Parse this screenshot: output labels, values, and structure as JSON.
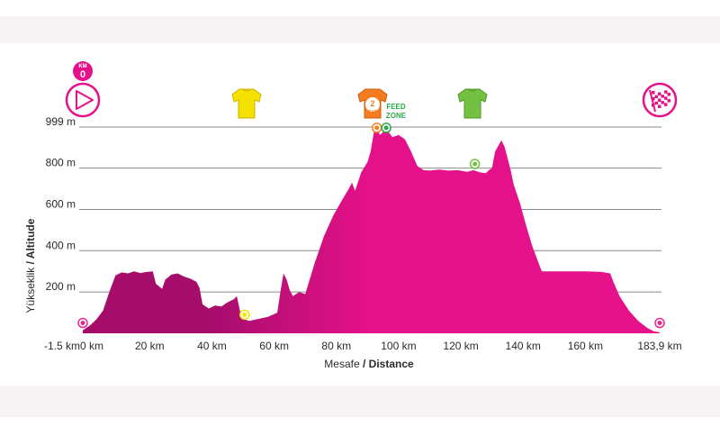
{
  "chart_data": {
    "type": "area",
    "xlabel": {
      "local": "Mesafe",
      "english": "Distance"
    },
    "ylabel": {
      "local": "Yükseklik",
      "english": "Altitude"
    },
    "x_ticks": [
      {
        "v": -1.5,
        "label": "-1.5 km"
      },
      {
        "v": 0,
        "label": "0 km"
      },
      {
        "v": 20,
        "label": "20 km"
      },
      {
        "v": 40,
        "label": "40 km"
      },
      {
        "v": 60,
        "label": "60 km"
      },
      {
        "v": 80,
        "label": "80 km"
      },
      {
        "v": 100,
        "label": "100 km"
      },
      {
        "v": 120,
        "label": "120 km"
      },
      {
        "v": 140,
        "label": "140 km"
      },
      {
        "v": 160,
        "label": "160 km"
      },
      {
        "v": 183.9,
        "label": "183,9 km"
      }
    ],
    "y_ticks": [
      {
        "v": 200,
        "label": "200 m"
      },
      {
        "v": 400,
        "label": "400 m"
      },
      {
        "v": 600,
        "label": "600 m"
      },
      {
        "v": 800,
        "label": "800 m"
      },
      {
        "v": 999,
        "label": "999 m"
      }
    ],
    "xlim": [
      -1.5,
      183.9
    ],
    "ylim": [
      0,
      999
    ],
    "colors": {
      "fill_dark": "#a60d6b",
      "fill": "#e5118a",
      "grid": "#8a8a8a",
      "start": "#e8258e"
    },
    "profile": [
      [
        -1.5,
        15
      ],
      [
        1,
        40
      ],
      [
        3,
        70
      ],
      [
        5,
        110
      ],
      [
        7,
        200
      ],
      [
        9,
        280
      ],
      [
        11,
        295
      ],
      [
        13,
        290
      ],
      [
        15,
        300
      ],
      [
        17,
        292
      ],
      [
        19,
        297
      ],
      [
        21,
        300
      ],
      [
        22,
        240
      ],
      [
        24,
        215
      ],
      [
        25,
        260
      ],
      [
        27,
        285
      ],
      [
        29,
        290
      ],
      [
        31,
        275
      ],
      [
        33,
        265
      ],
      [
        35,
        250
      ],
      [
        36,
        220
      ],
      [
        37,
        140
      ],
      [
        39,
        120
      ],
      [
        41,
        135
      ],
      [
        43,
        130
      ],
      [
        45,
        150
      ],
      [
        47,
        165
      ],
      [
        48,
        180
      ],
      [
        49,
        110
      ],
      [
        50,
        70
      ],
      [
        52,
        60
      ],
      [
        55,
        70
      ],
      [
        58,
        80
      ],
      [
        61,
        100
      ],
      [
        62,
        200
      ],
      [
        63,
        290
      ],
      [
        64,
        260
      ],
      [
        65,
        210
      ],
      [
        66,
        180
      ],
      [
        68,
        200
      ],
      [
        70,
        190
      ],
      [
        73,
        340
      ],
      [
        76,
        470
      ],
      [
        79,
        570
      ],
      [
        82,
        650
      ],
      [
        84,
        700
      ],
      [
        85,
        730
      ],
      [
        86,
        690
      ],
      [
        88,
        780
      ],
      [
        90,
        830
      ],
      [
        91,
        880
      ],
      [
        92,
        970
      ],
      [
        93,
        995
      ],
      [
        94,
        960
      ],
      [
        96,
        990
      ],
      [
        98,
        950
      ],
      [
        100,
        960
      ],
      [
        102,
        940
      ],
      [
        104,
        880
      ],
      [
        106,
        810
      ],
      [
        108,
        790
      ],
      [
        110,
        788
      ],
      [
        113,
        793
      ],
      [
        116,
        788
      ],
      [
        119,
        790
      ],
      [
        122,
        782
      ],
      [
        124,
        790
      ],
      [
        126,
        780
      ],
      [
        128,
        775
      ],
      [
        129,
        790
      ],
      [
        130,
        800
      ],
      [
        131,
        880
      ],
      [
        133,
        935
      ],
      [
        134,
        905
      ],
      [
        135,
        850
      ],
      [
        136,
        790
      ],
      [
        137,
        720
      ],
      [
        139,
        630
      ],
      [
        141,
        520
      ],
      [
        143,
        420
      ],
      [
        145,
        340
      ],
      [
        146,
        300
      ],
      [
        150,
        300
      ],
      [
        155,
        300
      ],
      [
        160,
        300
      ],
      [
        165,
        298
      ],
      [
        168,
        290
      ],
      [
        169,
        250
      ],
      [
        171,
        180
      ],
      [
        174,
        110
      ],
      [
        177,
        60
      ],
      [
        180,
        25
      ],
      [
        182,
        10
      ],
      [
        183.9,
        5
      ]
    ],
    "markers": [
      {
        "id": "start",
        "x": -1.5,
        "y": 50,
        "color": "#e8258e"
      },
      {
        "id": "sprint",
        "x": 50.5,
        "y": 90,
        "color": "#f2e600"
      },
      {
        "id": "kom",
        "x": 93,
        "y": 995,
        "color": "#f47c20"
      },
      {
        "id": "feed",
        "x": 96,
        "y": 995,
        "color": "#2aa84a"
      },
      {
        "id": "points",
        "x": 124.5,
        "y": 820,
        "color": "#74c043"
      },
      {
        "id": "finish",
        "x": 183.9,
        "y": 50,
        "color": "#e8258e"
      }
    ]
  },
  "icons": {
    "start_badge": {
      "top": "KM",
      "bottom": "0",
      "x": -1.5
    },
    "start_play": {
      "name": "play-icon",
      "x": -1.5
    },
    "yellow_jersey": {
      "name": "yellow-jersey-icon",
      "x": 50.5,
      "color": "#f5e100"
    },
    "orange_jersey": {
      "name": "orange-jersey-icon",
      "x": 93,
      "color": "#f47c20",
      "badge_top": "2",
      "badge_bottom": "CAT"
    },
    "feed_zone": {
      "line1": "FEED",
      "line2": "ZONE",
      "color": "#2aa84a"
    },
    "green_jersey": {
      "name": "green-jersey-icon",
      "x": 124.5,
      "color": "#74c043"
    },
    "finish_flag": {
      "name": "checkered-flag-icon",
      "x": 183.9
    }
  }
}
